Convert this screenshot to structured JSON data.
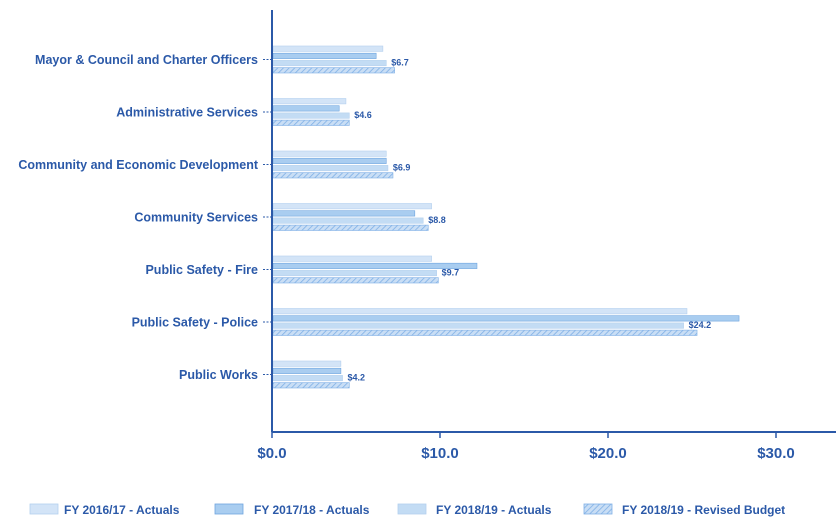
{
  "chart_data": {
    "type": "bar",
    "orientation": "horizontal",
    "title": "",
    "xlabel": "",
    "ylabel": "",
    "xlim": [
      0,
      33.5
    ],
    "x_ticks": [
      0,
      10,
      20,
      30
    ],
    "x_tick_labels": [
      "$0.0",
      "$10.0",
      "$20.0",
      "$30.0"
    ],
    "grid": false,
    "legend_position": "bottom",
    "categories": [
      "Mayor & Council and Charter Officers",
      "Administrative Services",
      "Community and Economic Development",
      "Community Services",
      "Public Safety - Fire",
      "Public Safety - Police",
      "Public Works"
    ],
    "series": [
      {
        "name": "FY 2016/17 - Actuals",
        "values": [
          6.6,
          4.4,
          6.8,
          9.5,
          9.5,
          24.7,
          4.1
        ],
        "color": "#d3e4f7"
      },
      {
        "name": "FY 2017/18 - Actuals",
        "values": [
          6.2,
          4.0,
          6.8,
          8.5,
          12.2,
          27.8,
          4.1
        ],
        "color": "#a9cdf0"
      },
      {
        "name": "FY 2018/19 - Actuals",
        "values": [
          6.8,
          4.6,
          6.9,
          9.0,
          9.8,
          24.5,
          4.2
        ],
        "color": "#c3dcf4"
      },
      {
        "name": "FY 2018/19 - Revised Budget",
        "values": [
          7.3,
          4.6,
          7.2,
          9.3,
          9.9,
          25.3,
          4.6
        ],
        "color": "#9ec4ec"
      }
    ],
    "data_labels": [
      "$6.7",
      "$4.6",
      "$6.9",
      "$8.8",
      "$9.7",
      "$24.2",
      "$4.2"
    ],
    "colors": {
      "axis": "#2b59a8",
      "text": "#2b59a8"
    }
  }
}
